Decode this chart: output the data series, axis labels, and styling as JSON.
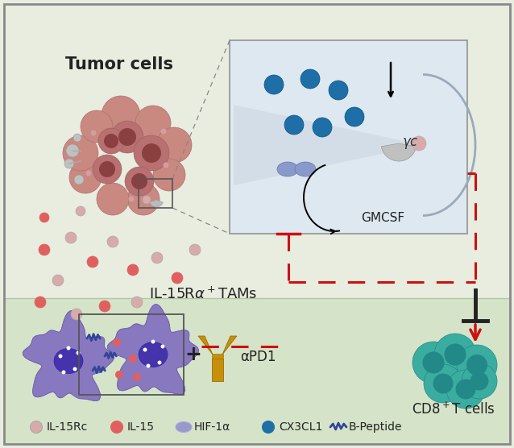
{
  "bg_color": "#e8ede0",
  "bg_color_bottom": "#d8e4cc",
  "border_color": "#888888",
  "title": "Tumor cells",
  "tumor_color_outer": "#c98880",
  "tumor_color_mid": "#b87070",
  "tumor_color_dark": "#8b4040",
  "tumor_nucleus": "#7a3030",
  "mac_color": "#8878c0",
  "mac_dark": "#6655aa",
  "mac_nucleus": "#4433aa",
  "teal_color": "#3aada0",
  "teal_dark": "#228888",
  "teal_inner": "#2a9590",
  "inset_bg": "#dde8f0",
  "cx3cl1_color": "#1e6fa8",
  "hif_color": "#8899cc",
  "il15rc_color": "#d8aaaa",
  "il15_color": "#e06060",
  "red_color": "#cc1111",
  "gray_color": "#aaaaaa",
  "gold_color": "#c8900a",
  "blue_peptide": "#334499",
  "label_tumor": "Tumor cells",
  "label_cd8": "CD8",
  "label_il15ra": "IL-15R",
  "label_gmcsf": "GMCSF",
  "label_gamma": "γc",
  "label_apd1": "αPD1"
}
